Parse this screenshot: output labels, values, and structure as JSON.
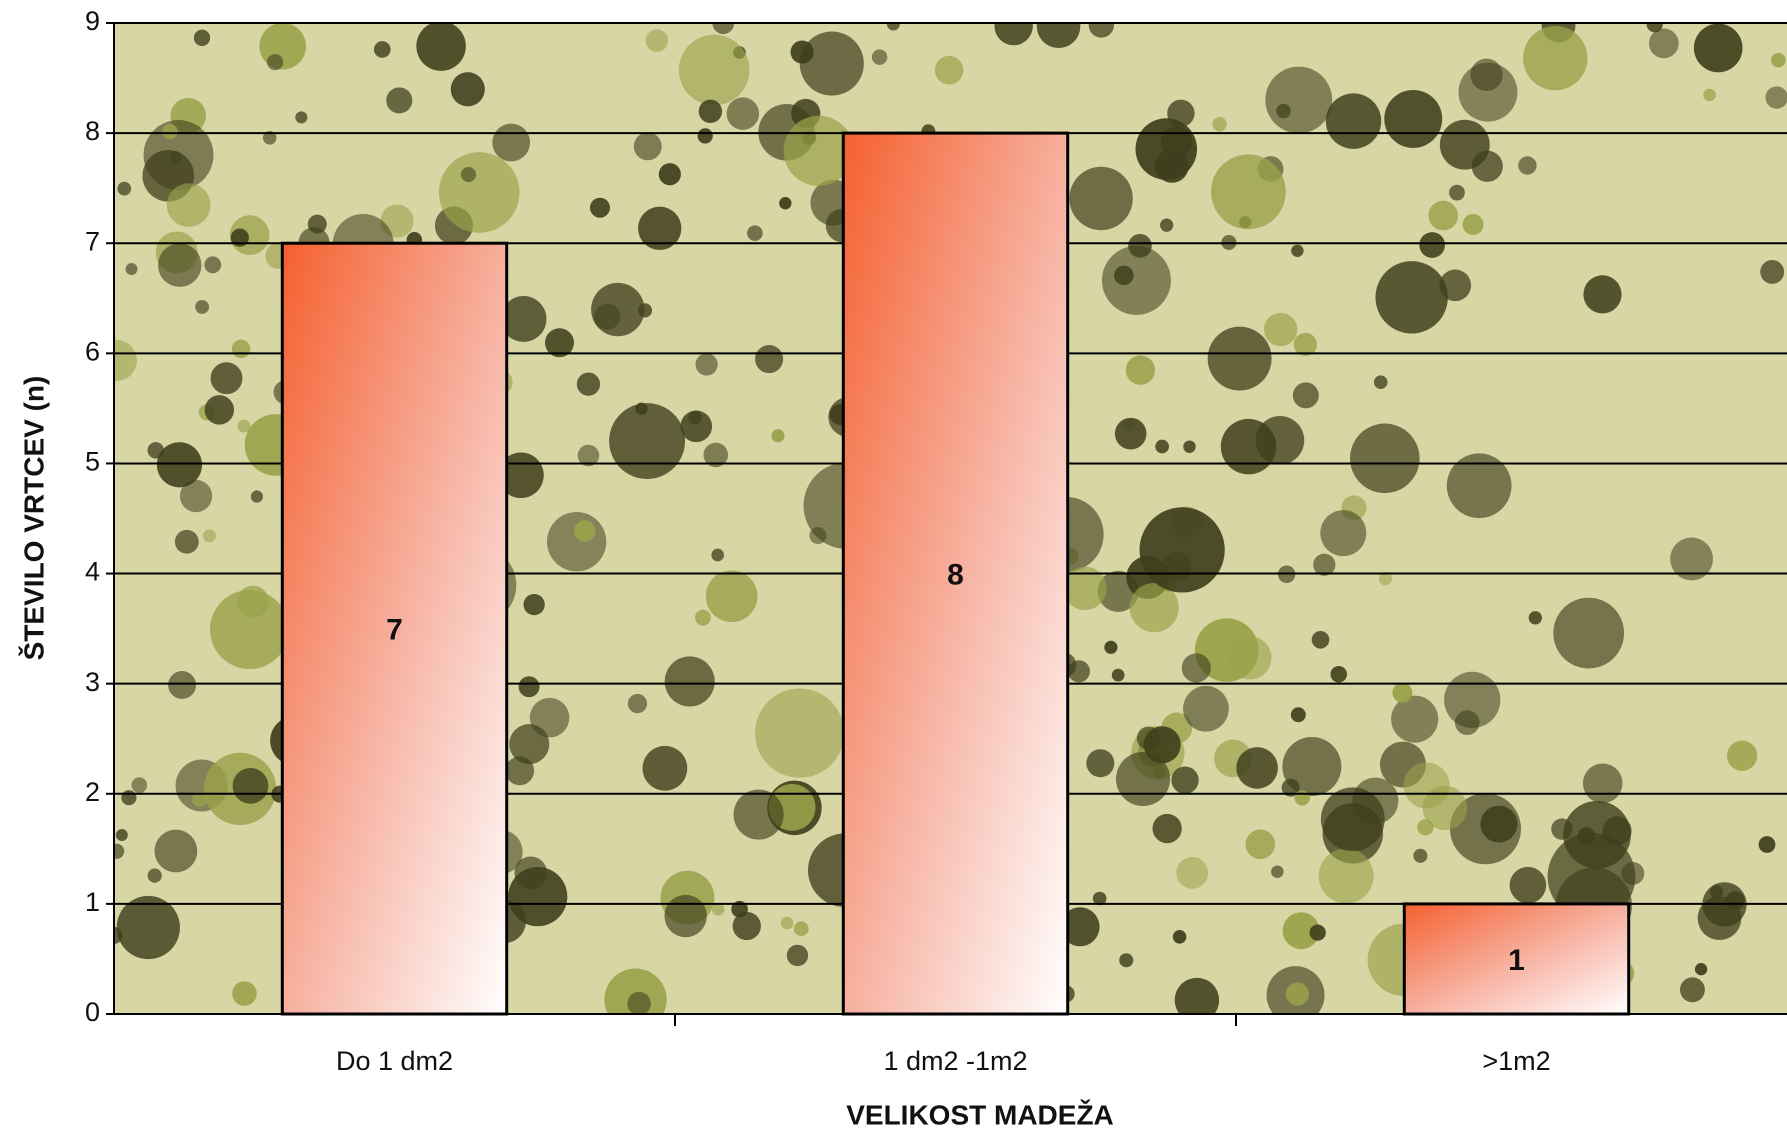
{
  "chart_data": {
    "type": "bar",
    "x_label": "VELIKOST MADEŽA",
    "y_label": "ŠTEVILO VRTCEV (n)",
    "categories": [
      "Do 1 dm2",
      "1 dm2 -1m2",
      ">1m2"
    ],
    "values": [
      7,
      8,
      1
    ],
    "color": "#f5602f",
    "ylim": [
      0,
      9
    ],
    "yticks": [
      0,
      1,
      2,
      3,
      4,
      5,
      6,
      7,
      8,
      9
    ],
    "grid": true
  }
}
